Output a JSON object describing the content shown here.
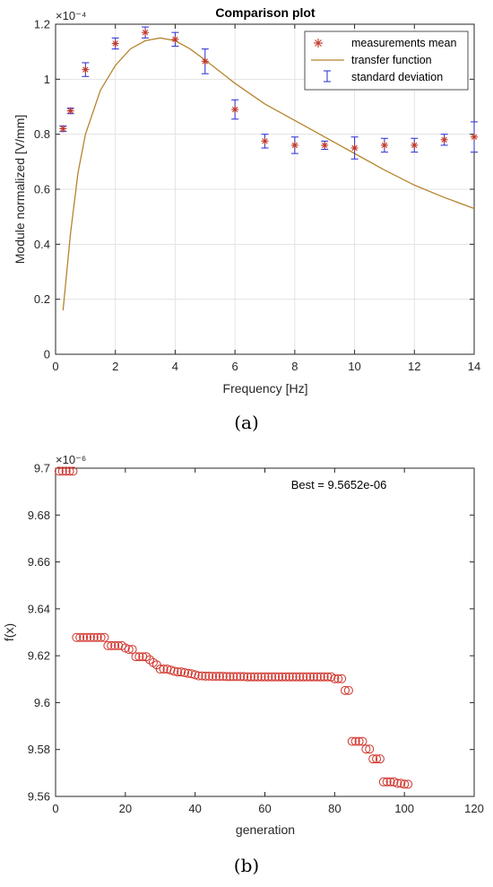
{
  "chart_data": [
    {
      "type": "scatter",
      "title": "Comparison plot",
      "xlabel": "Frequency [Hz]",
      "ylabel": "Module normalized [V/mm]",
      "y_exponent_label": "×10⁻⁴",
      "xlim": [
        0,
        14
      ],
      "ylim": [
        0,
        1.2
      ],
      "x_ticks": [
        "0",
        "2",
        "4",
        "6",
        "8",
        "10",
        "12",
        "14"
      ],
      "y_ticks": [
        "0",
        "0.2",
        "0.4",
        "0.6",
        "0.8",
        "1",
        "1.2"
      ],
      "grid": true,
      "legend_position": "top-right",
      "caption": "(a)",
      "series": [
        {
          "name": "measurements mean",
          "marker": "asterisk",
          "color": "#c0392b",
          "x": [
            0.25,
            0.5,
            1,
            2,
            3,
            4,
            5,
            6,
            7,
            8,
            9,
            10,
            11,
            12,
            13,
            14
          ],
          "y": [
            0.82,
            0.885,
            1.035,
            1.13,
            1.17,
            1.145,
            1.065,
            0.89,
            0.775,
            0.76,
            0.76,
            0.75,
            0.76,
            0.76,
            0.78,
            0.79
          ]
        },
        {
          "name": "standard deviation",
          "marker": "errorbar",
          "color": "#3b3bd6",
          "x": [
            0.25,
            0.5,
            1,
            2,
            3,
            4,
            5,
            6,
            7,
            8,
            9,
            10,
            11,
            12,
            13,
            14
          ],
          "y": [
            0.82,
            0.885,
            1.035,
            1.13,
            1.17,
            1.145,
            1.065,
            0.89,
            0.775,
            0.76,
            0.76,
            0.75,
            0.76,
            0.76,
            0.78,
            0.79
          ],
          "err": [
            0.01,
            0.01,
            0.025,
            0.02,
            0.02,
            0.025,
            0.045,
            0.035,
            0.025,
            0.03,
            0.015,
            0.04,
            0.025,
            0.025,
            0.02,
            0.055
          ]
        },
        {
          "name": "transfer function",
          "marker": "line",
          "color": "#b5842e",
          "x": [
            0.25,
            0.5,
            0.75,
            1,
            1.5,
            2,
            2.5,
            3,
            3.5,
            4,
            4.5,
            5,
            6,
            7,
            8,
            9,
            10,
            11,
            12,
            13,
            14
          ],
          "y": [
            0.16,
            0.44,
            0.66,
            0.8,
            0.96,
            1.05,
            1.11,
            1.14,
            1.15,
            1.14,
            1.11,
            1.07,
            0.985,
            0.91,
            0.85,
            0.79,
            0.73,
            0.67,
            0.615,
            0.57,
            0.53
          ]
        }
      ]
    },
    {
      "type": "scatter",
      "xlabel": "generation",
      "ylabel": "f(x)",
      "y_exponent_label": "×10⁻⁶",
      "xlim": [
        0,
        120
      ],
      "ylim": [
        9.56,
        9.7
      ],
      "x_ticks": [
        "0",
        "20",
        "40",
        "60",
        "80",
        "100",
        "120"
      ],
      "y_ticks": [
        "9.56",
        "9.58",
        "9.6",
        "9.62",
        "9.64",
        "9.66",
        "9.68",
        "9.7"
      ],
      "grid": false,
      "annotation": "Best = 9.5652e-06",
      "caption": "(b)",
      "series": [
        {
          "marker": "circle",
          "color": "#d1342b",
          "x": [
            1,
            2,
            3,
            4,
            5,
            6,
            7,
            8,
            9,
            10,
            11,
            12,
            13,
            14,
            15,
            16,
            17,
            18,
            19,
            20,
            21,
            22,
            23,
            24,
            25,
            26,
            27,
            28,
            29,
            30,
            31,
            32,
            33,
            34,
            35,
            36,
            37,
            38,
            39,
            40,
            41,
            42,
            43,
            44,
            45,
            46,
            47,
            48,
            49,
            50,
            51,
            52,
            53,
            54,
            55,
            56,
            57,
            58,
            59,
            60,
            61,
            62,
            63,
            64,
            65,
            66,
            67,
            68,
            69,
            70,
            71,
            72,
            73,
            74,
            75,
            76,
            77,
            78,
            79,
            80,
            81,
            82,
            83,
            84,
            85,
            86,
            87,
            88,
            89,
            90,
            91,
            92,
            93,
            94,
            95,
            96,
            97,
            98,
            99,
            100,
            101
          ],
          "y": [
            9.6987,
            9.6987,
            9.6987,
            9.6987,
            9.6987,
            9.6278,
            9.6278,
            9.6278,
            9.6278,
            9.6278,
            9.6278,
            9.6278,
            9.6278,
            9.6278,
            9.6243,
            9.6243,
            9.6243,
            9.6243,
            9.6243,
            9.6233,
            9.6227,
            9.6227,
            9.6196,
            9.6196,
            9.6196,
            9.6196,
            9.6183,
            9.6171,
            9.6161,
            9.6143,
            9.6143,
            9.6143,
            9.6139,
            9.6134,
            9.6131,
            9.6131,
            9.6128,
            9.6125,
            9.6123,
            9.6119,
            9.6114,
            9.6114,
            9.6113,
            9.6113,
            9.6112,
            9.6112,
            9.6112,
            9.6112,
            9.6111,
            9.6111,
            9.6111,
            9.6111,
            9.6111,
            9.6111,
            9.611,
            9.611,
            9.611,
            9.611,
            9.611,
            9.611,
            9.611,
            9.611,
            9.611,
            9.611,
            9.611,
            9.611,
            9.611,
            9.611,
            9.611,
            9.611,
            9.611,
            9.611,
            9.611,
            9.611,
            9.611,
            9.611,
            9.611,
            9.611,
            9.611,
            9.6102,
            9.6102,
            9.6102,
            9.6052,
            9.6052,
            9.5835,
            9.5835,
            9.5835,
            9.5835,
            9.5802,
            9.5802,
            9.576,
            9.576,
            9.576,
            9.5662,
            9.5662,
            9.5662,
            9.5662,
            9.5656,
            9.5656,
            9.5652,
            9.5652
          ]
        }
      ]
    }
  ]
}
